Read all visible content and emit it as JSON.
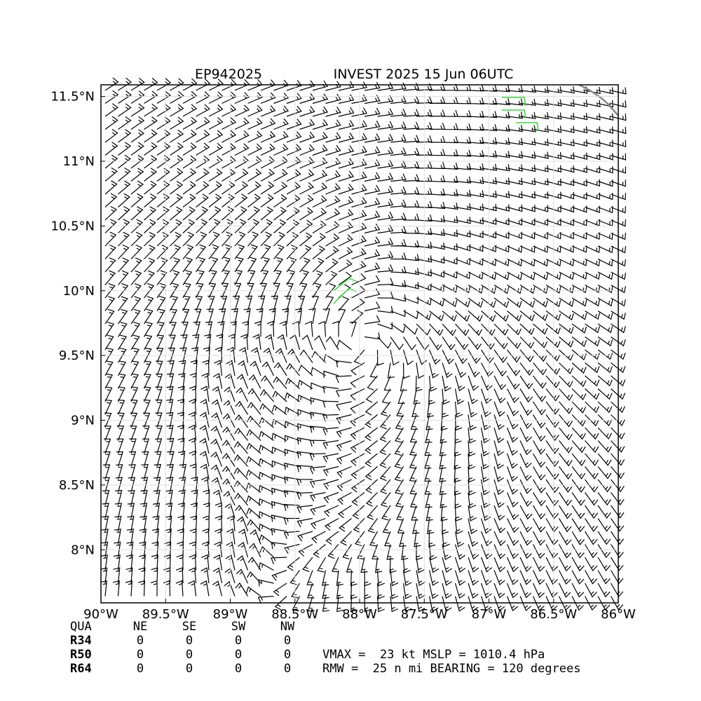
{
  "chart_data": {
    "type": "wind-barbs",
    "title_left": "EP942025",
    "title": "INVEST 2025 15 Jun 06UTC",
    "xlim": [
      -90,
      -86
    ],
    "ylim": [
      7.59,
      11.59
    ],
    "xticks": [
      {
        "value": -90,
        "label": "90°W"
      },
      {
        "value": -89.5,
        "label": "89.5°W"
      },
      {
        "value": -89,
        "label": "89°W"
      },
      {
        "value": -88.5,
        "label": "88.5°W"
      },
      {
        "value": -88,
        "label": "88°W"
      },
      {
        "value": -87.5,
        "label": "87.5°W"
      },
      {
        "value": -87,
        "label": "87°W"
      },
      {
        "value": -86.5,
        "label": "86.5°W"
      },
      {
        "value": -86,
        "label": "86°W"
      }
    ],
    "yticks": [
      {
        "value": 8,
        "label": "8°N"
      },
      {
        "value": 8.5,
        "label": "8.5°N"
      },
      {
        "value": 9,
        "label": "9°N"
      },
      {
        "value": 9.5,
        "label": "9.5°N"
      },
      {
        "value": 10,
        "label": "10°N"
      },
      {
        "value": 10.5,
        "label": "10.5°N"
      },
      {
        "value": 11,
        "label": "11°N"
      },
      {
        "value": 11.5,
        "label": "11.5°N"
      }
    ],
    "grid": true
  },
  "table": {
    "header": [
      "QUA",
      "NE",
      "SE",
      "SW",
      "NW"
    ],
    "rows": [
      [
        "R34",
        "0",
        "0",
        "0",
        "0"
      ],
      [
        "R50",
        "0",
        "0",
        "0",
        "0"
      ],
      [
        "R64",
        "0",
        "0",
        "0",
        "0"
      ]
    ]
  },
  "stats": [
    "VMAX =  23 kt MSLP = 1010.4 hPa",
    "RMW =  25 n mi BEARING = 120 degrees"
  ]
}
